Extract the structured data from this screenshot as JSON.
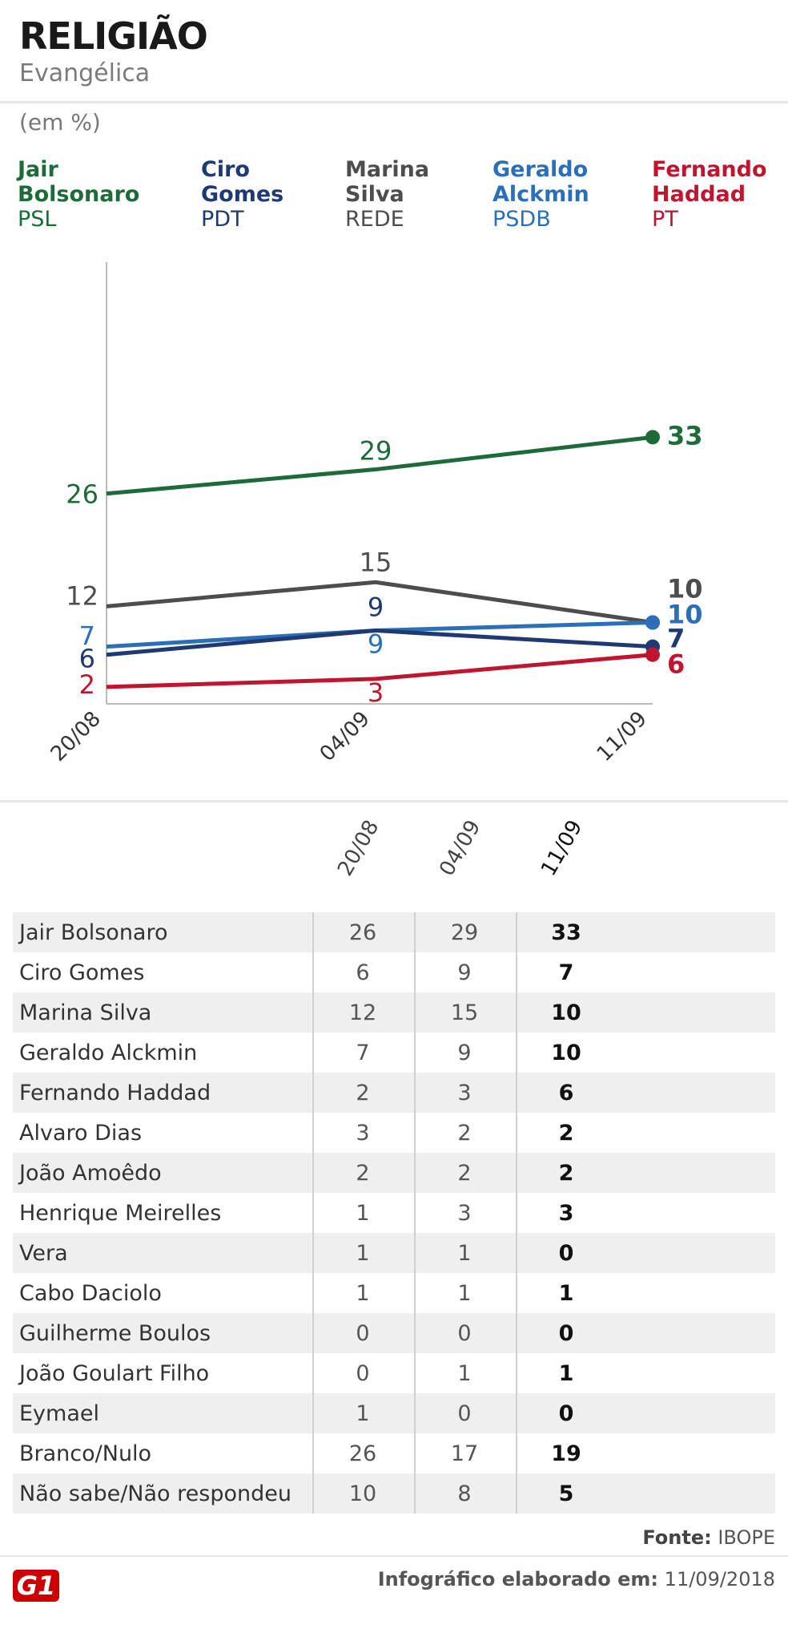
{
  "header": {
    "title": "RELIGIÃO",
    "subtitle": "Evangélica",
    "unit": "(em %)"
  },
  "legend": [
    {
      "name_line1": "Jair",
      "name_line2": "Bolsonaro",
      "party": "PSL",
      "color": "#1e6b3a"
    },
    {
      "name_line1": "Ciro",
      "name_line2": "Gomes",
      "party": "PDT",
      "color": "#1f3a73"
    },
    {
      "name_line1": "Marina",
      "name_line2": "Silva",
      "party": "REDE",
      "color": "#4d4d4d"
    },
    {
      "name_line1": "Geraldo",
      "name_line2": "Alckmin",
      "party": "PSDB",
      "color": "#2a6fb7"
    },
    {
      "name_line1": "Fernando",
      "name_line2": "Haddad",
      "party": "PT",
      "color": "#c0152f"
    }
  ],
  "chart_data": {
    "type": "line",
    "x": [
      "20/08",
      "04/09",
      "11/09"
    ],
    "series": [
      {
        "name": "Jair Bolsonaro",
        "values": [
          26,
          29,
          33
        ],
        "color": "#1e6b3a"
      },
      {
        "name": "Marina Silva",
        "values": [
          12,
          15,
          10
        ],
        "color": "#4d4d4d"
      },
      {
        "name": "Geraldo Alckmin",
        "values": [
          7,
          9,
          10
        ],
        "color": "#2a6fb7"
      },
      {
        "name": "Ciro Gomes",
        "values": [
          6,
          9,
          7
        ],
        "color": "#1f3a73"
      },
      {
        "name": "Fernando Haddad",
        "values": [
          2,
          3,
          6
        ],
        "color": "#c0152f"
      }
    ],
    "ylim": [
      0,
      40
    ],
    "title": "RELIGIÃO",
    "ylabel": "(em %)"
  },
  "table": {
    "columns": [
      "20/08",
      "04/09",
      "11/09"
    ],
    "rows": [
      {
        "name": "Jair Bolsonaro",
        "values": [
          "26",
          "29",
          "33"
        ]
      },
      {
        "name": "Ciro Gomes",
        "values": [
          "6",
          "9",
          "7"
        ]
      },
      {
        "name": "Marina Silva",
        "values": [
          "12",
          "15",
          "10"
        ]
      },
      {
        "name": "Geraldo Alckmin",
        "values": [
          "7",
          "9",
          "10"
        ]
      },
      {
        "name": "Fernando Haddad",
        "values": [
          "2",
          "3",
          "6"
        ]
      },
      {
        "name": "Alvaro Dias",
        "values": [
          "3",
          "2",
          "2"
        ]
      },
      {
        "name": "João Amoêdo",
        "values": [
          "2",
          "2",
          "2"
        ]
      },
      {
        "name": "Henrique Meirelles",
        "values": [
          "1",
          "3",
          "3"
        ]
      },
      {
        "name": "Vera",
        "values": [
          "1",
          "1",
          "0"
        ]
      },
      {
        "name": "Cabo Daciolo",
        "values": [
          "1",
          "1",
          "1"
        ]
      },
      {
        "name": "Guilherme Boulos",
        "values": [
          "0",
          "0",
          "0"
        ]
      },
      {
        "name": "João Goulart Filho",
        "values": [
          "0",
          "1",
          "1"
        ]
      },
      {
        "name": "Eymael",
        "values": [
          "1",
          "0",
          "0"
        ]
      },
      {
        "name": "Branco/Nulo",
        "values": [
          "26",
          "17",
          "19"
        ]
      },
      {
        "name": "Não sabe/Não respondeu",
        "values": [
          "10",
          "8",
          "5"
        ]
      }
    ]
  },
  "footer": {
    "source_label": "Fonte:",
    "source_value": "IBOPE",
    "logo": "G1",
    "credit_label": "Infográfico elaborado em:",
    "credit_date": "11/09/2018"
  }
}
